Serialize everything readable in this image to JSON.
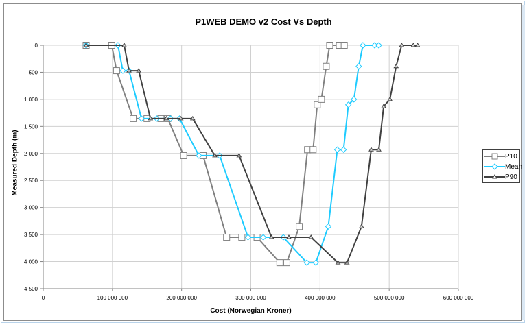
{
  "chart_data": {
    "type": "line",
    "title": "P1WEB DEMO v2 Cost Vs Depth",
    "xlabel": "Cost (Norwegian  Kroner)",
    "ylabel": "Measured Depth (m)",
    "xlim": [
      0,
      600000000
    ],
    "ylim": [
      0,
      4500
    ],
    "y_inverted": true,
    "grid": true,
    "legend_position": "right",
    "x_ticks": [
      0,
      100000000,
      200000000,
      300000000,
      400000000,
      500000000,
      600000000
    ],
    "x_tick_labels": [
      "0",
      "100 000 000",
      "200 000 000",
      "300 000 000",
      "400 000 000",
      "500 000 000",
      "600 000 000"
    ],
    "y_ticks": [
      0,
      500,
      1000,
      1500,
      2000,
      2500,
      3000,
      3500,
      4000,
      4500
    ],
    "y_tick_labels": [
      "0",
      "500",
      "1 000",
      "1 500",
      "2 000",
      "2 500",
      "3 000",
      "3 500",
      "4 000",
      "4 500"
    ],
    "series": [
      {
        "name": "P10",
        "color": "#808080",
        "marker": "square",
        "x": [
          62,
          99,
          106,
          130,
          150,
          170,
          180,
          203,
          231,
          265,
          287,
          309,
          342,
          352,
          370,
          382,
          390,
          396,
          402,
          409,
          414,
          428,
          435
        ],
        "y": [
          0,
          0,
          470,
          1355,
          1355,
          1355,
          1355,
          2040,
          2040,
          3550,
          3550,
          3550,
          4020,
          4020,
          3350,
          1930,
          1930,
          1100,
          1000,
          390,
          0,
          0,
          0
        ],
        "x_unit_multiplier": 1000000
      },
      {
        "name": "Mean",
        "color": "#1ecbff",
        "marker": "diamond",
        "x": [
          62,
          108,
          115,
          124,
          142,
          164,
          184,
          197,
          225,
          255,
          296,
          318,
          347,
          381,
          394,
          412,
          425,
          434,
          441,
          449,
          456,
          462,
          479,
          485
        ],
        "y": [
          0,
          0,
          470,
          470,
          1355,
          1355,
          1355,
          1355,
          2040,
          2040,
          3550,
          3550,
          3550,
          4020,
          4020,
          3350,
          1930,
          1930,
          1100,
          1000,
          390,
          0,
          0,
          0
        ],
        "x_unit_multiplier": 1000000
      },
      {
        "name": "P90",
        "color": "#404040",
        "marker": "triangle",
        "x": [
          62,
          117,
          124,
          138,
          155,
          178,
          199,
          216,
          248,
          283,
          330,
          355,
          387,
          426,
          439,
          460,
          474,
          485,
          492,
          501,
          510,
          518,
          535,
          541
        ],
        "y": [
          0,
          0,
          470,
          470,
          1355,
          1355,
          1355,
          1355,
          2040,
          2040,
          3550,
          3550,
          3550,
          4020,
          4020,
          3350,
          1930,
          1930,
          1130,
          1000,
          390,
          0,
          0,
          0
        ],
        "x_unit_multiplier": 1000000
      }
    ]
  }
}
